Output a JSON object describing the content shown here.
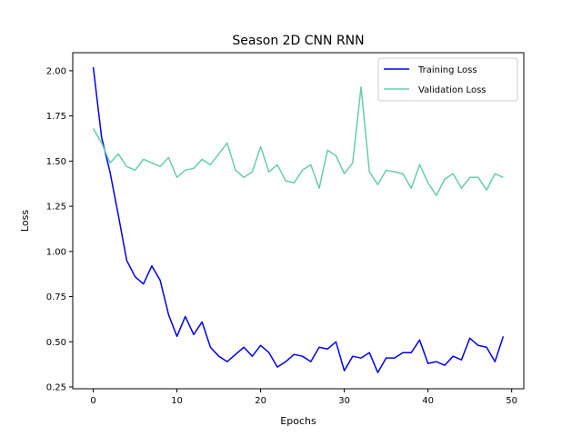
{
  "chart_data": {
    "type": "line",
    "title": "Season 2D CNN RNN",
    "xlabel": "Epochs",
    "ylabel": "Loss",
    "xlim": [
      -2.45,
      51.45
    ],
    "ylim": [
      0.24,
      2.1
    ],
    "xticks": [
      0,
      10,
      20,
      30,
      40,
      50
    ],
    "yticks": [
      0.25,
      0.5,
      0.75,
      1.0,
      1.25,
      1.5,
      1.75,
      2.0
    ],
    "ytick_labels": [
      "0.25",
      "0.50",
      "0.75",
      "1.00",
      "1.25",
      "1.50",
      "1.75",
      "2.00"
    ],
    "grid": false,
    "legend_position": "upper right",
    "x": [
      0,
      1,
      2,
      3,
      4,
      5,
      6,
      7,
      8,
      9,
      10,
      11,
      12,
      13,
      14,
      15,
      16,
      17,
      18,
      19,
      20,
      21,
      22,
      23,
      24,
      25,
      26,
      27,
      28,
      29,
      30,
      31,
      32,
      33,
      34,
      35,
      36,
      37,
      38,
      39,
      40,
      41,
      42,
      43,
      44,
      45,
      46,
      47,
      48,
      49
    ],
    "series": [
      {
        "name": "Training Loss",
        "color": "#0000ee",
        "values": [
          2.02,
          1.63,
          1.44,
          1.2,
          0.95,
          0.86,
          0.82,
          0.92,
          0.84,
          0.65,
          0.53,
          0.64,
          0.54,
          0.61,
          0.47,
          0.42,
          0.39,
          0.43,
          0.47,
          0.42,
          0.48,
          0.44,
          0.36,
          0.39,
          0.43,
          0.42,
          0.39,
          0.47,
          0.46,
          0.5,
          0.34,
          0.42,
          0.41,
          0.44,
          0.33,
          0.41,
          0.41,
          0.44,
          0.44,
          0.51,
          0.38,
          0.39,
          0.37,
          0.42,
          0.4,
          0.52,
          0.48,
          0.47,
          0.39,
          0.53
        ]
      },
      {
        "name": "Validation Loss",
        "color": "#66cdaa",
        "values": [
          1.68,
          1.6,
          1.49,
          1.54,
          1.47,
          1.45,
          1.51,
          1.49,
          1.47,
          1.52,
          1.41,
          1.45,
          1.46,
          1.51,
          1.48,
          1.54,
          1.6,
          1.45,
          1.41,
          1.44,
          1.58,
          1.44,
          1.48,
          1.39,
          1.38,
          1.45,
          1.48,
          1.35,
          1.56,
          1.53,
          1.43,
          1.49,
          1.91,
          1.44,
          1.37,
          1.45,
          1.44,
          1.43,
          1.35,
          1.48,
          1.38,
          1.31,
          1.4,
          1.43,
          1.35,
          1.41,
          1.41,
          1.34,
          1.43,
          1.41
        ]
      }
    ]
  }
}
